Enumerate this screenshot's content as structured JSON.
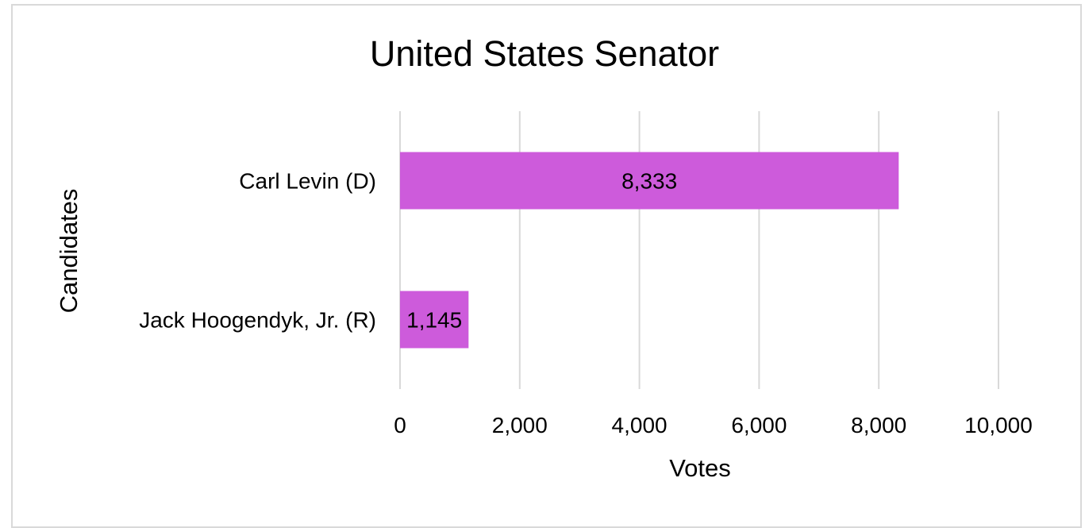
{
  "chart_data": {
    "type": "bar",
    "orientation": "horizontal",
    "title": "United States Senator",
    "xlabel": "Votes",
    "ylabel": "Candidates",
    "categories": [
      "Carl Levin (D)",
      "Jack Hoogendyk, Jr. (R)"
    ],
    "values": [
      8333,
      1145
    ],
    "value_labels": [
      "8,333",
      "1,145"
    ],
    "xlim": [
      0,
      10000
    ],
    "x_ticks": [
      0,
      2000,
      4000,
      6000,
      8000,
      10000
    ],
    "x_tick_labels": [
      "0",
      "2,000",
      "4,000",
      "6,000",
      "8,000",
      "10,000"
    ],
    "grid": true,
    "legend": "none",
    "bar_color": "#cd5bdb",
    "gridline_color": "#d9d9d9",
    "border_color": "#d9d9d9"
  }
}
